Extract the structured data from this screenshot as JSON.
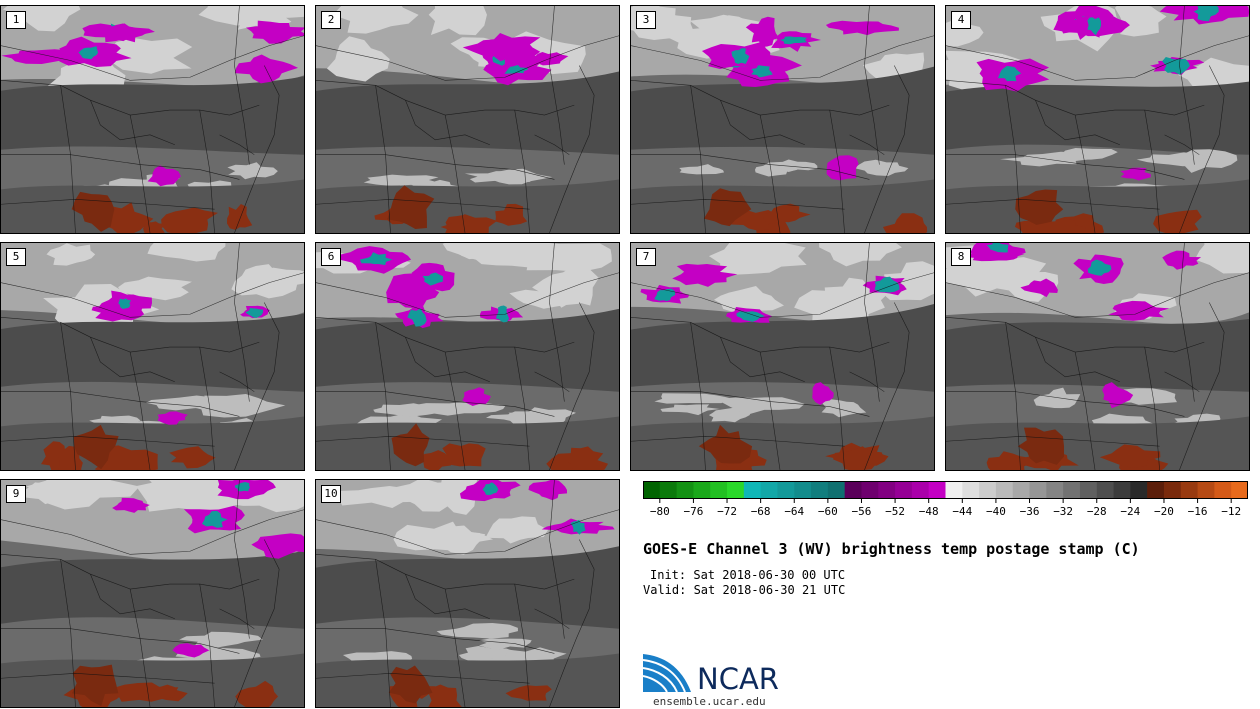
{
  "panels": [
    {
      "label": "1"
    },
    {
      "label": "2"
    },
    {
      "label": "3"
    },
    {
      "label": "4"
    },
    {
      "label": "5"
    },
    {
      "label": "6"
    },
    {
      "label": "7"
    },
    {
      "label": "8"
    },
    {
      "label": "9"
    },
    {
      "label": "10"
    }
  ],
  "colorbar": {
    "tick_labels": [
      "−80",
      "−76",
      "−72",
      "−68",
      "−64",
      "−60",
      "−56",
      "−52",
      "−48",
      "−44",
      "−40",
      "−36",
      "−32",
      "−28",
      "−24",
      "−20",
      "−16",
      "−12"
    ],
    "ticks": [
      -80,
      -76,
      -72,
      -68,
      -64,
      -60,
      -56,
      -52,
      -48,
      -44,
      -40,
      -36,
      -32,
      -28,
      -24,
      -20,
      -16,
      -12
    ],
    "min": -82,
    "max": -10,
    "step": 2,
    "colors": [
      "#006400",
      "#0b7a0b",
      "#139113",
      "#1aa81a",
      "#22c022",
      "#2ad82a",
      "#0fb7b7",
      "#12a8a8",
      "#139a9a",
      "#128c8c",
      "#117e7e",
      "#0f7070",
      "#5a005a",
      "#6e006e",
      "#820082",
      "#960096",
      "#aa00aa",
      "#c400c4",
      "#f0f0f0",
      "#dedede",
      "#cccccc",
      "#bababa",
      "#a8a8a8",
      "#969696",
      "#848484",
      "#727272",
      "#606060",
      "#4e4e4e",
      "#3c3c3c",
      "#2a2a2a",
      "#5c1e0a",
      "#7a2a0c",
      "#983a10",
      "#b64a14",
      "#d45a18",
      "#e86a1c"
    ]
  },
  "title": "GOES-E Channel 3 (WV) brightness temp postage stamp (C)",
  "init": "Init: Sat 2018-06-30 00 UTC",
  "valid": "Valid: Sat 2018-06-30 21 UTC",
  "logo": {
    "name": "ncar-logo",
    "text": "NCAR"
  },
  "site": "ensemble.ucar.edu"
}
